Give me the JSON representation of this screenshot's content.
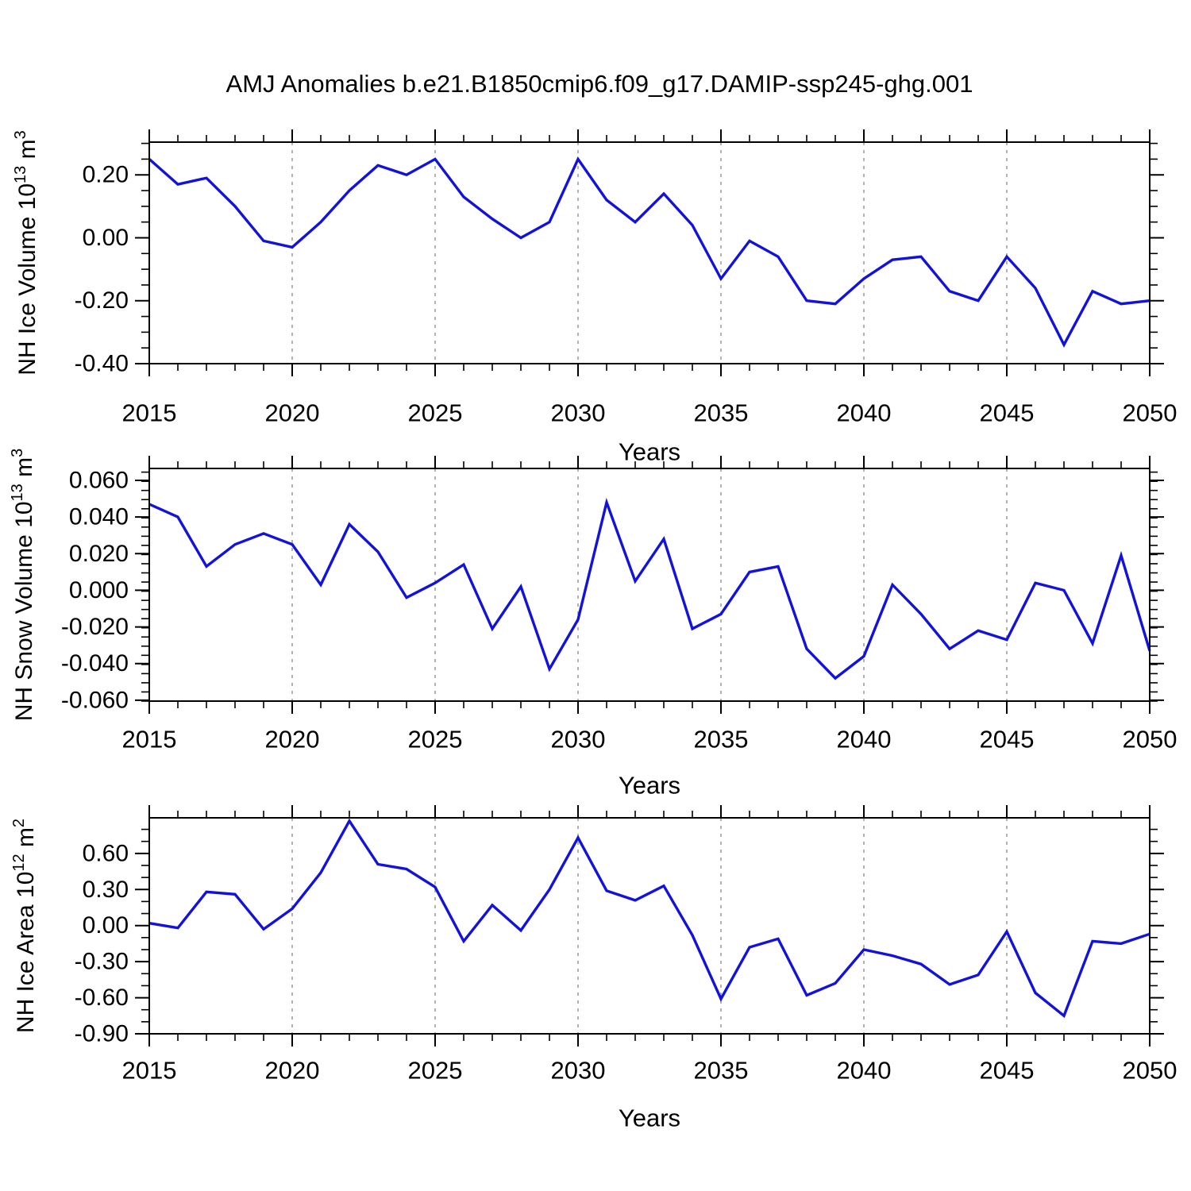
{
  "title": "AMJ Anomalies b.e21.B1850cmip6.f09_g17.DAMIP-ssp245-ghg.001",
  "x_axis_label": "Years",
  "colors": {
    "line": "#1212dd",
    "grid": "#999999",
    "axis": "#000000",
    "background": "#ffffff"
  },
  "chart_data": [
    {
      "type": "line",
      "title": "",
      "xlabel": "Years",
      "ylabel": "NH Ice Volume 10^13 m^3",
      "ylabel_parts": [
        [
          "NH Ice Volume 10",
          0
        ],
        [
          "13",
          1
        ],
        [
          " m",
          0
        ],
        [
          "3",
          1
        ]
      ],
      "x": [
        2015,
        2016,
        2017,
        2018,
        2019,
        2020,
        2021,
        2022,
        2023,
        2024,
        2025,
        2026,
        2027,
        2028,
        2029,
        2030,
        2031,
        2032,
        2033,
        2034,
        2035,
        2036,
        2037,
        2038,
        2039,
        2040,
        2041,
        2042,
        2043,
        2044,
        2045,
        2046,
        2047,
        2048,
        2049,
        2050
      ],
      "values": [
        0.25,
        0.17,
        0.19,
        0.1,
        -0.01,
        -0.03,
        0.05,
        0.15,
        0.23,
        0.2,
        0.25,
        0.13,
        0.06,
        0.0,
        0.05,
        0.25,
        0.12,
        0.05,
        0.14,
        0.04,
        -0.13,
        -0.01,
        -0.06,
        -0.2,
        -0.21,
        -0.13,
        -0.07,
        -0.06,
        -0.17,
        -0.2,
        -0.06,
        -0.16,
        -0.34,
        -0.17,
        -0.21,
        -0.2
      ],
      "xlim": [
        2015,
        2050
      ],
      "ylim": [
        -0.4,
        0.304
      ],
      "yticks": [
        {
          "v": 0.2,
          "label": "0.20"
        },
        {
          "v": 0.0,
          "label": "0.00"
        },
        {
          "v": -0.2,
          "label": "-0.20"
        },
        {
          "v": -0.4,
          "label": "-0.40"
        }
      ],
      "y_major_step": 0.2,
      "y_minor_step": 0.05,
      "xtick_labels": [
        "2015",
        "2020",
        "2025",
        "2030",
        "2035",
        "2040",
        "2045",
        "2050"
      ],
      "x_major_step": 5,
      "x_minor_step": 1,
      "grid_years": [
        2020,
        2025,
        2030,
        2035,
        2040,
        2045
      ],
      "legend": "none",
      "grid": "vertical-dashed"
    },
    {
      "type": "line",
      "title": "",
      "xlabel": "Years",
      "ylabel": "NH Snow Volume 10^13 m^3",
      "ylabel_parts": [
        [
          "NH Snow Volume 10",
          0
        ],
        [
          "13",
          1
        ],
        [
          " m",
          0
        ],
        [
          "3",
          1
        ]
      ],
      "x": [
        2015,
        2016,
        2017,
        2018,
        2019,
        2020,
        2021,
        2022,
        2023,
        2024,
        2025,
        2026,
        2027,
        2028,
        2029,
        2030,
        2031,
        2032,
        2033,
        2034,
        2035,
        2036,
        2037,
        2038,
        2039,
        2040,
        2041,
        2042,
        2043,
        2044,
        2045,
        2046,
        2047,
        2048,
        2049,
        2050
      ],
      "values": [
        0.047,
        0.04,
        0.013,
        0.025,
        0.031,
        0.025,
        0.003,
        0.036,
        0.021,
        -0.004,
        0.004,
        0.014,
        -0.021,
        0.002,
        -0.043,
        -0.016,
        0.048,
        0.005,
        0.028,
        -0.021,
        -0.013,
        0.01,
        0.013,
        -0.032,
        -0.048,
        -0.036,
        0.003,
        -0.013,
        -0.032,
        -0.022,
        -0.027,
        0.004,
        0.0,
        -0.029,
        0.019,
        -0.033
      ],
      "xlim": [
        2015,
        2050
      ],
      "ylim": [
        -0.0605,
        0.0665
      ],
      "yticks": [
        {
          "v": 0.06,
          "label": "0.060"
        },
        {
          "v": 0.04,
          "label": "0.040"
        },
        {
          "v": 0.02,
          "label": "0.020"
        },
        {
          "v": 0.0,
          "label": "0.000"
        },
        {
          "v": -0.02,
          "label": "-0.020"
        },
        {
          "v": -0.04,
          "label": "-0.040"
        },
        {
          "v": -0.06,
          "label": "-0.060"
        }
      ],
      "y_major_step": 0.02,
      "y_minor_step": 0.005,
      "xtick_labels": [
        "2015",
        "2020",
        "2025",
        "2030",
        "2035",
        "2040",
        "2045",
        "2050"
      ],
      "x_major_step": 5,
      "x_minor_step": 1,
      "grid_years": [
        2020,
        2025,
        2030,
        2035,
        2040,
        2045
      ],
      "legend": "none",
      "grid": "vertical-dashed"
    },
    {
      "type": "line",
      "title": "",
      "xlabel": "Years",
      "ylabel": "NH Ice Area 10^12 m^2",
      "ylabel_parts": [
        [
          "NH Ice Area 10",
          0
        ],
        [
          "12",
          1
        ],
        [
          " m",
          0
        ],
        [
          "2",
          1
        ]
      ],
      "x": [
        2015,
        2016,
        2017,
        2018,
        2019,
        2020,
        2021,
        2022,
        2023,
        2024,
        2025,
        2026,
        2027,
        2028,
        2029,
        2030,
        2031,
        2032,
        2033,
        2034,
        2035,
        2036,
        2037,
        2038,
        2039,
        2040,
        2041,
        2042,
        2043,
        2044,
        2045,
        2046,
        2047,
        2048,
        2049,
        2050
      ],
      "values": [
        0.02,
        -0.02,
        0.28,
        0.26,
        -0.03,
        0.14,
        0.44,
        0.87,
        0.51,
        0.47,
        0.32,
        -0.13,
        0.17,
        -0.04,
        0.3,
        0.73,
        0.29,
        0.21,
        0.33,
        -0.08,
        -0.61,
        -0.18,
        -0.11,
        -0.58,
        -0.48,
        -0.2,
        -0.25,
        -0.32,
        -0.49,
        -0.41,
        -0.05,
        -0.56,
        -0.75,
        -0.13,
        -0.15,
        -0.07
      ],
      "xlim": [
        2015,
        2050
      ],
      "ylim": [
        -0.9,
        0.896
      ],
      "yticks": [
        {
          "v": 0.6,
          "label": "0.60"
        },
        {
          "v": 0.3,
          "label": "0.30"
        },
        {
          "v": 0.0,
          "label": "0.00"
        },
        {
          "v": -0.3,
          "label": "-0.30"
        },
        {
          "v": -0.6,
          "label": "-0.60"
        },
        {
          "v": -0.9,
          "label": "-0.90"
        }
      ],
      "y_major_step": 0.3,
      "y_minor_step": 0.1,
      "xtick_labels": [
        "2015",
        "2020",
        "2025",
        "2030",
        "2035",
        "2040",
        "2045",
        "2050"
      ],
      "x_major_step": 5,
      "x_minor_step": 1,
      "grid_years": [
        2020,
        2025,
        2030,
        2035,
        2040,
        2045
      ],
      "legend": "none",
      "grid": "vertical-dashed"
    }
  ]
}
